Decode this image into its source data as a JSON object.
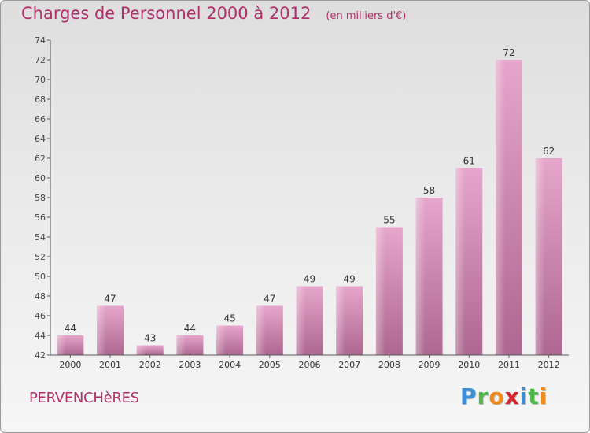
{
  "title": "Charges de Personnel 2000 à 2012",
  "unit": "(en milliers d'€)",
  "commune": "PERVENCHèRES",
  "logo": {
    "letters": [
      "P",
      "r",
      "o",
      "x",
      "i",
      "t",
      "i"
    ],
    "colors": [
      "#3a8fd6",
      "#4fb84a",
      "#f08a1c",
      "#d9232d",
      "#3a8fd6",
      "#4fb84a",
      "#f08a1c"
    ]
  },
  "colors": {
    "bar": "#c9729f",
    "bar_light": "#e6a6cb",
    "title": "#b0306a"
  },
  "chart_data": {
    "type": "bar",
    "categories": [
      "2000",
      "2001",
      "2002",
      "2003",
      "2004",
      "2005",
      "2006",
      "2007",
      "2008",
      "2009",
      "2010",
      "2011",
      "2012"
    ],
    "values": [
      44,
      47,
      43,
      44,
      45,
      47,
      49,
      49,
      55,
      58,
      61,
      72,
      62
    ],
    "title": "Charges de Personnel 2000 à 2012",
    "ylim": [
      42,
      74
    ],
    "yticks": [
      42,
      44,
      46,
      48,
      50,
      52,
      54,
      56,
      58,
      60,
      62,
      64,
      66,
      68,
      70,
      72,
      74
    ],
    "grid": false
  }
}
